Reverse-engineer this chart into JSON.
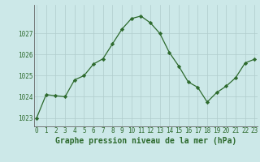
{
  "x": [
    0,
    1,
    2,
    3,
    4,
    5,
    6,
    7,
    8,
    9,
    10,
    11,
    12,
    13,
    14,
    15,
    16,
    17,
    18,
    19,
    20,
    21,
    22,
    23
  ],
  "y": [
    1023.0,
    1024.1,
    1024.05,
    1024.0,
    1024.8,
    1025.0,
    1025.55,
    1025.8,
    1026.5,
    1027.2,
    1027.7,
    1027.82,
    1027.5,
    1027.0,
    1026.1,
    1025.45,
    1024.7,
    1024.45,
    1023.75,
    1024.2,
    1024.5,
    1024.9,
    1025.6,
    1025.78
  ],
  "line_color": "#2d6a2d",
  "marker": "D",
  "marker_size": 2.2,
  "bg_color": "#cce8e8",
  "grid_color": "#b0cccc",
  "xlabel": "Graphe pression niveau de la mer (hPa)",
  "xlabel_color": "#2d6a2d",
  "tick_color": "#2d6a2d",
  "ylim": [
    1022.6,
    1028.35
  ],
  "yticks": [
    1023,
    1024,
    1025,
    1026,
    1027
  ],
  "xticks": [
    0,
    1,
    2,
    3,
    4,
    5,
    6,
    7,
    8,
    9,
    10,
    11,
    12,
    13,
    14,
    15,
    16,
    17,
    18,
    19,
    20,
    21,
    22,
    23
  ],
  "tick_fontsize": 5.5,
  "xlabel_fontsize": 7.0,
  "linewidth": 0.9
}
